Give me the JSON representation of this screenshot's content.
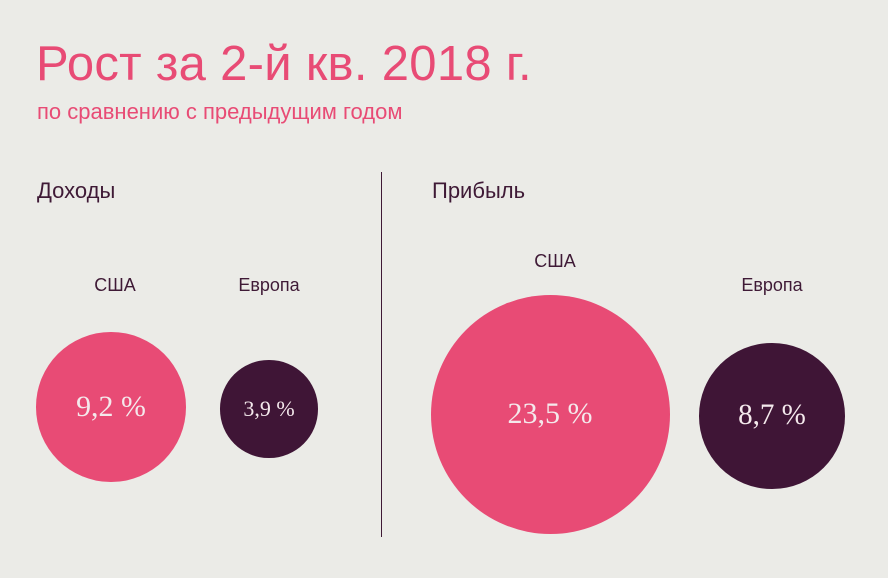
{
  "chart_data": [
    {
      "type": "bubble",
      "title": "Рост за 2-й кв. 2018 г.",
      "subtitle": "по сравнению с предыдущим годом",
      "panel": "Доходы",
      "categories": [
        "США",
        "Европа"
      ],
      "values": [
        9.2,
        3.9
      ],
      "value_labels": [
        "9,2 %",
        "3,9 %"
      ],
      "colors": [
        "#e84b75",
        "#3f1536"
      ]
    },
    {
      "type": "bubble",
      "panel": "Прибыль",
      "categories": [
        "США",
        "Европа"
      ],
      "values": [
        23.5,
        8.7
      ],
      "value_labels": [
        "23,5 %",
        "8,7 %"
      ],
      "colors": [
        "#e84b75",
        "#3f1536"
      ]
    }
  ],
  "header": {
    "title": "Рост за 2-й кв. 2018 г.",
    "subtitle": "по сравнению с предыдущим годом"
  },
  "panels": {
    "revenue": {
      "label": "Доходы",
      "us": {
        "label": "США",
        "value_label": "9,2 %"
      },
      "eu": {
        "label": "Европа",
        "value_label": "3,9 %"
      }
    },
    "profit": {
      "label": "Прибыль",
      "us": {
        "label": "США",
        "value_label": "23,5 %"
      },
      "eu": {
        "label": "Европа",
        "value_label": "8,7 %"
      }
    }
  },
  "colors": {
    "background": "#ebebe7",
    "accent": "#e84b75",
    "dark": "#3f1536",
    "text_dark": "#3f1a36"
  }
}
